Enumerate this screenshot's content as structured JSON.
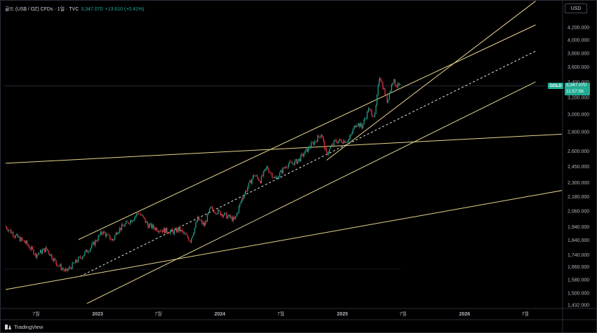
{
  "header": {
    "symbol": "골드 (US$ / OZ) CFDs · 1일 · TVC",
    "price": "3,347.070",
    "change": "+13.610 (+0.41%)"
  },
  "currency_button": "USD",
  "price_tag": {
    "symbol": "GOLD",
    "price": "3,347.070",
    "countdown": "11:57:56"
  },
  "footer": {
    "brand": "TradingView"
  },
  "colors": {
    "background": "#000000",
    "up_candle": "#22ab94",
    "down_candle": "#f23645",
    "trendline": "#e8d48a",
    "midline": "#ffffff",
    "axis_text": "#b2b5be",
    "price_tag": "#22ab94"
  },
  "chart_data": {
    "type": "line",
    "title": "",
    "xlabel": "",
    "ylabel": "",
    "scale": "log",
    "grid": false,
    "y_ticks": [
      4200,
      4000,
      3800,
      3600,
      3400,
      3200,
      3000,
      2800,
      2600,
      2450,
      2300,
      2180,
      2060,
      1940,
      1840,
      1740,
      1660,
      1580,
      1500,
      1432
    ],
    "y_tick_labels": [
      "4,200.000",
      "4,000.000",
      "3,800.000",
      "3,600.000",
      "3,400.000",
      "3,200.000",
      "3,000.000",
      "2,800.000",
      "2,600.000",
      "2,450.000",
      "2,300.000",
      "2,180.000",
      "2,060.000",
      "1,940.000",
      "1,840.000",
      "1,740.000",
      "1,660.000",
      "1,580.000",
      "1,500.000",
      "1,432.000"
    ],
    "x_ticks": [
      "2022-07-01",
      "2023-01-01",
      "2023-07-01",
      "2024-01-01",
      "2024-07-01",
      "2025-01-01",
      "2025-07-01",
      "2026-01-01",
      "2026-07-01"
    ],
    "x_tick_labels": [
      "7월",
      "2023",
      "7월",
      "2024",
      "7월",
      "2025",
      "7월",
      "2026",
      "7월"
    ],
    "series": [
      {
        "x": [
          "2022-04-01",
          "2022-05-01",
          "2022-06-01",
          "2022-07-01",
          "2022-08-01",
          "2022-09-01",
          "2022-09-28",
          "2022-11-01",
          "2022-12-15",
          "2023-01-15",
          "2023-02-15",
          "2023-03-01",
          "2023-04-15",
          "2023-05-04",
          "2023-06-01",
          "2023-07-01",
          "2023-08-15",
          "2023-09-01",
          "2023-10-05",
          "2023-10-27",
          "2023-11-15",
          "2023-12-04",
          "2024-01-15",
          "2024-02-14",
          "2024-03-08",
          "2024-04-12",
          "2024-05-01",
          "2024-05-20",
          "2024-06-15",
          "2024-07-17",
          "2024-08-20",
          "2024-09-30",
          "2024-10-30",
          "2024-11-14",
          "2024-12-10",
          "2025-01-20",
          "2025-02-11",
          "2025-02-28",
          "2025-03-20",
          "2025-04-08",
          "2025-04-22",
          "2025-05-15",
          "2025-06-01",
          "2025-06-13",
          "2025-06-24"
        ],
        "y": [
          1940,
          1870,
          1820,
          1740,
          1780,
          1680,
          1630,
          1700,
          1800,
          1900,
          1840,
          1910,
          2000,
          2050,
          1950,
          1920,
          1900,
          1920,
          1840,
          2000,
          1950,
          2080,
          2030,
          1990,
          2170,
          2370,
          2320,
          2440,
          2330,
          2460,
          2500,
          2660,
          2780,
          2570,
          2700,
          2710,
          2900,
          2860,
          3050,
          2980,
          3480,
          3160,
          3420,
          3350,
          3347
        ]
      }
    ],
    "lines": [
      {
        "name": "",
        "style": "solid",
        "from": {
          "x": "2022-11-05",
          "y": 1845
        },
        "to": {
          "x": "2026-08-01",
          "y": 4240
        }
      },
      {
        "name": "",
        "style": "solid",
        "from": {
          "x": "2022-11-30",
          "y": 1440
        },
        "to": {
          "x": "2026-08-01",
          "y": 3400
        }
      },
      {
        "name": "",
        "style": "dashed",
        "from": {
          "x": "2022-11-10",
          "y": 1600
        },
        "to": {
          "x": "2026-08-01",
          "y": 3830
        }
      },
      {
        "name": "",
        "style": "solid",
        "from": {
          "x": "2022-04-01",
          "y": 2480
        },
        "to": {
          "x": "2026-12-31",
          "y": 2790
        }
      },
      {
        "name": "",
        "style": "solid",
        "from": {
          "x": "2022-04-01",
          "y": 1520
        },
        "to": {
          "x": "2026-12-31",
          "y": 2270
        }
      },
      {
        "name": "",
        "style": "solid",
        "from": {
          "x": "2024-11-15",
          "y": 2510
        },
        "to": {
          "x": "2026-08-01",
          "y": 4650
        }
      }
    ]
  }
}
